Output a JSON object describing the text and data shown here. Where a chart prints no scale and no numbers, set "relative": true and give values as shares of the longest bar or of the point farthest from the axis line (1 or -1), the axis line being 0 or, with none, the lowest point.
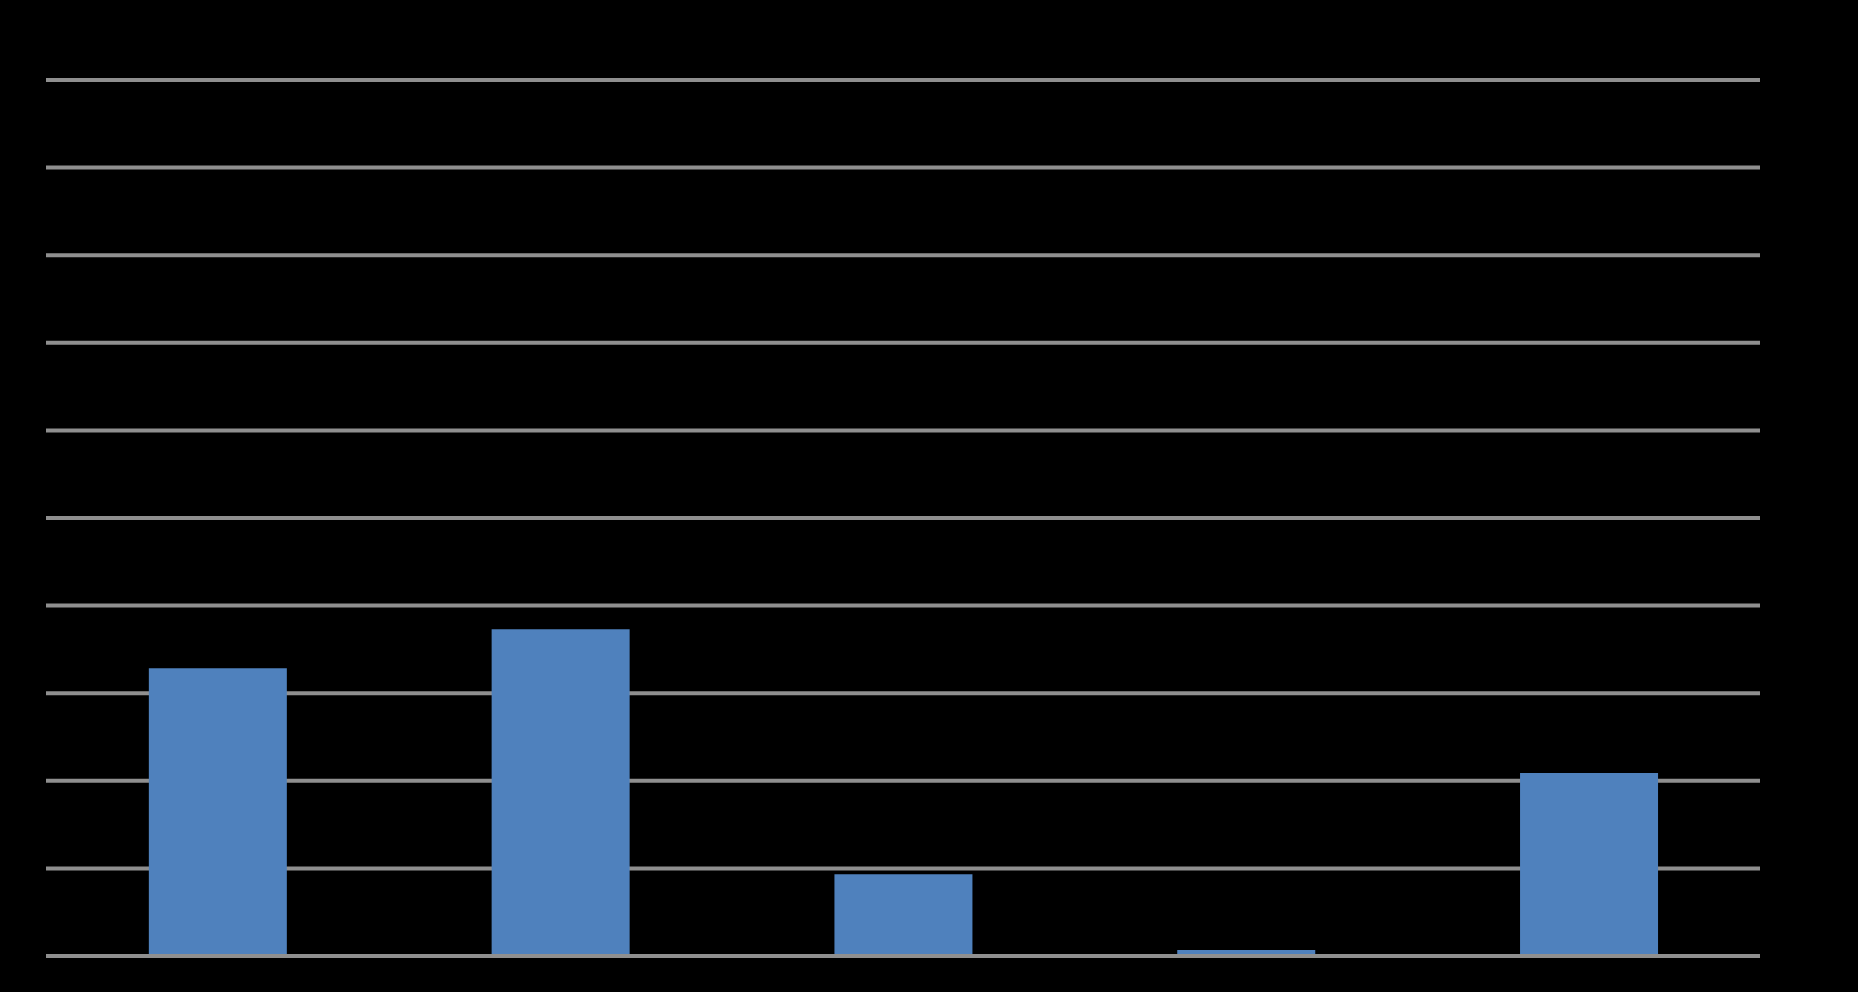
{
  "chart_data": {
    "type": "bar",
    "categories": [
      null,
      null,
      null,
      null,
      null
    ],
    "values": [
      0.88,
      1,
      0.25,
      0,
      0.56
    ],
    "color": "#4f81bd",
    "relative": true,
    "grid": "y"
  }
}
